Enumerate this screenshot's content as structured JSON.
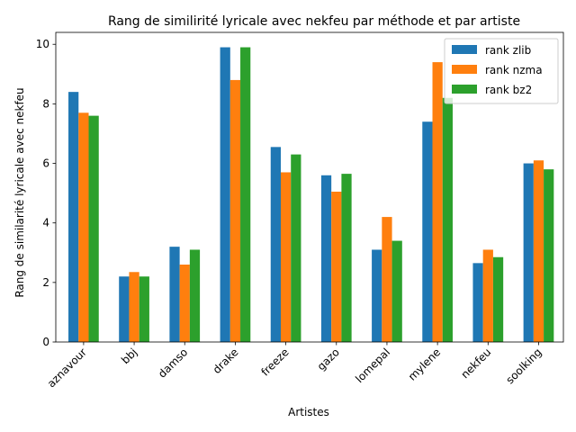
{
  "chart_data": {
    "type": "bar",
    "title": "Rang de similirité lyricale avec nekfeu par méthode et par artiste",
    "xlabel": "Artistes",
    "ylabel": "Rang de similarité lyricale avec nekfeu",
    "ylim": [
      0,
      10.4
    ],
    "yticks": [
      "0",
      "2",
      "4",
      "6",
      "8",
      "10"
    ],
    "legend_position": "top-right",
    "grid": false,
    "categories": [
      "aznavour",
      "bbj",
      "damso",
      "drake",
      "freeze",
      "gazo",
      "lomepal",
      "mylene",
      "nekfeu",
      "soolking"
    ],
    "series": [
      {
        "name": "rank zlib",
        "color": "#1f77b4",
        "values": [
          8.4,
          2.2,
          3.2,
          9.9,
          6.55,
          5.6,
          3.1,
          7.4,
          2.65,
          6.0
        ]
      },
      {
        "name": "rank nzma",
        "color": "#ff7f0e",
        "values": [
          7.7,
          2.35,
          2.6,
          8.8,
          5.7,
          5.05,
          4.2,
          9.4,
          3.1,
          6.1
        ]
      },
      {
        "name": "rank bz2",
        "color": "#2ca02c",
        "values": [
          7.6,
          2.2,
          3.1,
          9.9,
          6.3,
          5.65,
          3.4,
          8.2,
          2.85,
          5.8
        ]
      }
    ]
  }
}
